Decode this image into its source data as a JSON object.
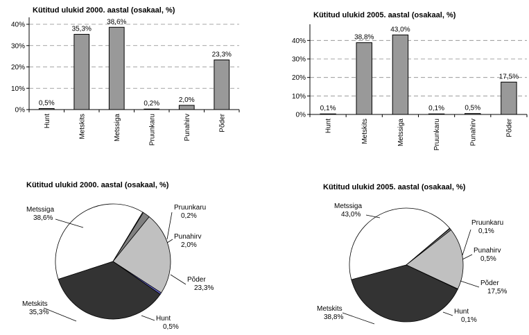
{
  "chart_data": [
    {
      "type": "bar",
      "title": "Kütitud ulukid 2000. aastal (osakaal, %)",
      "categories": [
        "Hunt",
        "Metskits",
        "Metssiga",
        "Pruunkaru",
        "Punahirv",
        "Põder"
      ],
      "values": [
        0.5,
        35.3,
        38.6,
        0.2,
        2.0,
        23.3
      ],
      "value_labels": [
        "0,5%",
        "35,3%",
        "38,6%",
        "0,2%",
        "2,0%",
        "23,3%"
      ],
      "yticks": [
        "0%",
        "10%",
        "20%",
        "30%",
        "40%"
      ],
      "ylim": [
        0,
        40
      ],
      "grid": true,
      "bar_color": "#999999"
    },
    {
      "type": "bar",
      "title": "Kütitud ulukid 2005. aastal (osakaal, %)",
      "categories": [
        "Hunt",
        "Metskits",
        "Metssiga",
        "Pruunkaru",
        "Punahirv",
        "Põder"
      ],
      "values": [
        0.1,
        38.8,
        43.0,
        0.1,
        0.5,
        17.5
      ],
      "value_labels": [
        "0,1%",
        "38,8%",
        "43,0%",
        "0,1%",
        "0,5%",
        "17,5%"
      ],
      "yticks": [
        "0%",
        "10%",
        "20%",
        "30%",
        "40%"
      ],
      "ylim": [
        0,
        45
      ],
      "grid": true,
      "bar_color": "#999999"
    },
    {
      "type": "pie",
      "title": "Kütitud ulukid 2000. aastal (osakaal, %)",
      "slices": [
        {
          "name": "Metssiga",
          "value": 38.6,
          "label": "38,6%",
          "color": "#ffffff"
        },
        {
          "name": "Pruunkaru",
          "value": 0.2,
          "label": "0,2%",
          "color": "#ffffff"
        },
        {
          "name": "Punahirv",
          "value": 2.0,
          "label": "2,0%",
          "color": "#808080"
        },
        {
          "name": "Põder",
          "value": 23.3,
          "label": "23,3%",
          "color": "#c0c0c0"
        },
        {
          "name": "Hunt",
          "value": 0.5,
          "label": "0,5%",
          "color": "#6666cc"
        },
        {
          "name": "Metskits",
          "value": 35.3,
          "label": "35,3%",
          "color": "#333333"
        }
      ]
    },
    {
      "type": "pie",
      "title": "Kütitud ulukid 2005. aastal (osakaal, %)",
      "slices": [
        {
          "name": "Metssiga",
          "value": 43.0,
          "label": "43,0%",
          "color": "#ffffff"
        },
        {
          "name": "Pruunkaru",
          "value": 0.1,
          "label": "0,1%",
          "color": "#ffffff"
        },
        {
          "name": "Punahirv",
          "value": 0.5,
          "label": "0,5%",
          "color": "#808080"
        },
        {
          "name": "Põder",
          "value": 17.5,
          "label": "17,5%",
          "color": "#c0c0c0"
        },
        {
          "name": "Hunt",
          "value": 0.1,
          "label": "0,1%",
          "color": "#6666cc"
        },
        {
          "name": "Metskits",
          "value": 38.8,
          "label": "38,8%",
          "color": "#333333"
        }
      ]
    }
  ]
}
